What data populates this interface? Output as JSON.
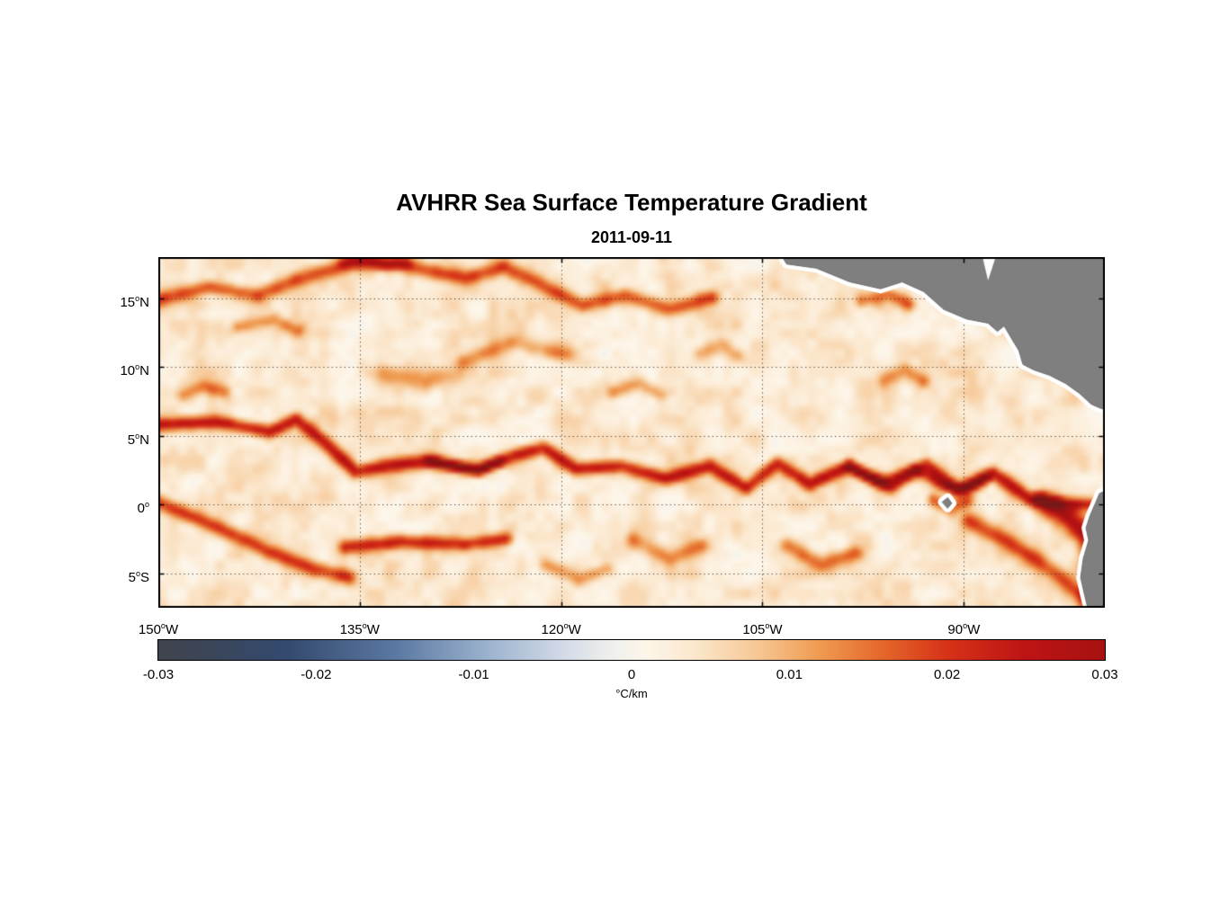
{
  "chart_data": {
    "type": "heatmap",
    "title": "AVHRR Sea Surface Temperature Gradient",
    "subtitle": "2011-09-11",
    "extent": {
      "lon_min": -150,
      "lon_max": -79.5,
      "lat_min": -7.5,
      "lat_max": 18
    },
    "x_axis": {
      "ticks": [
        {
          "value": -150,
          "num": "150",
          "hemi": "W"
        },
        {
          "value": -135,
          "num": "135",
          "hemi": "W"
        },
        {
          "value": -120,
          "num": "120",
          "hemi": "W"
        },
        {
          "value": -105,
          "num": "105",
          "hemi": "W"
        },
        {
          "value": -90,
          "num": "90",
          "hemi": "W"
        }
      ]
    },
    "y_axis": {
      "ticks": [
        {
          "value": 15,
          "num": "15",
          "hemi": "N"
        },
        {
          "value": 10,
          "num": "10",
          "hemi": "N"
        },
        {
          "value": 5,
          "num": "5",
          "hemi": "N"
        },
        {
          "value": 0,
          "num": "0",
          "hemi": ""
        },
        {
          "value": -5,
          "num": "5",
          "hemi": "S"
        }
      ]
    },
    "gridlines": {
      "lons": [
        -135,
        -120,
        -105,
        -90
      ],
      "lats": [
        15,
        10,
        5,
        0,
        -5
      ]
    },
    "colorbar": {
      "label": "°C/km",
      "range": [
        -0.03,
        0.03
      ],
      "ticks": [
        {
          "value": -0.03,
          "label": "-0.03"
        },
        {
          "value": -0.02,
          "label": "-0.02"
        },
        {
          "value": -0.01,
          "label": "-0.01"
        },
        {
          "value": 0,
          "label": "0"
        },
        {
          "value": 0.01,
          "label": "0.01"
        },
        {
          "value": 0.02,
          "label": "0.02"
        },
        {
          "value": 0.03,
          "label": "0.03"
        }
      ]
    },
    "colormap": [
      [
        -0.03,
        "#40444c"
      ],
      [
        -0.022,
        "#34496e"
      ],
      [
        -0.015,
        "#5a78a2"
      ],
      [
        -0.009,
        "#9db4cf"
      ],
      [
        -0.004,
        "#d6dde8"
      ],
      [
        -0.001,
        "#f2f1ec"
      ],
      [
        0.001,
        "#fdf6ea"
      ],
      [
        0.004,
        "#fbe7cd"
      ],
      [
        0.008,
        "#f6c795"
      ],
      [
        0.012,
        "#ef9a50"
      ],
      [
        0.016,
        "#e4662a"
      ],
      [
        0.02,
        "#d63318"
      ],
      [
        0.025,
        "#bd1414"
      ],
      [
        0.03,
        "#a81111"
      ],
      [
        0.037,
        "#7d1717"
      ]
    ],
    "background": 0.0035,
    "noise": {
      "amp": 0.0045,
      "seed": 7,
      "scale_large": 1.6,
      "scale_small": 0.7
    },
    "features": [
      {
        "name": "equatorial-front",
        "amp": 0.021,
        "width": 0.5,
        "points": [
          [
            -150,
            5.8
          ],
          [
            -145.7,
            6.0
          ],
          [
            -141.7,
            5.3
          ],
          [
            -139.7,
            6.2
          ],
          [
            -137.7,
            4.6
          ],
          [
            -135.3,
            2.4
          ],
          [
            -133,
            2.8
          ],
          [
            -129.6,
            3.2
          ],
          [
            -126.3,
            2.5
          ],
          [
            -123.3,
            3.6
          ],
          [
            -121.3,
            4.1
          ],
          [
            -118.9,
            2.6
          ],
          [
            -115.6,
            2.8
          ],
          [
            -112.2,
            1.9
          ],
          [
            -108.9,
            2.8
          ],
          [
            -106.2,
            1.2
          ],
          [
            -103.9,
            3.0
          ],
          [
            -101.5,
            1.5
          ],
          [
            -98.5,
            2.8
          ],
          [
            -95.5,
            1.3
          ],
          [
            -92.8,
            2.9
          ],
          [
            -90.5,
            1.0
          ],
          [
            -87.8,
            2.3
          ],
          [
            -85.1,
            0.4
          ],
          [
            -82.4,
            0.1
          ],
          [
            -79.5,
            -0.1
          ]
        ]
      },
      {
        "name": "front-core-west",
        "amp": 0.013,
        "width": 0.38,
        "points": [
          [
            -129.8,
            3.1
          ],
          [
            -127.6,
            2.7
          ],
          [
            -126.1,
            2.5
          ],
          [
            -124.6,
            3.1
          ]
        ]
      },
      {
        "name": "front-core-east",
        "amp": 0.013,
        "width": 0.42,
        "points": [
          [
            -98.6,
            2.7
          ],
          [
            -96.2,
            1.6
          ],
          [
            -93.6,
            2.6
          ],
          [
            -91.6,
            1.4
          ],
          [
            -89.8,
            1.2
          ],
          [
            -88.2,
            2.0
          ]
        ]
      },
      {
        "name": "north-band",
        "amp": 0.015,
        "width": 0.55,
        "points": [
          [
            -150,
            14.9
          ],
          [
            -146.2,
            15.8
          ],
          [
            -142.6,
            15.2
          ],
          [
            -139.2,
            16.5
          ],
          [
            -135.6,
            17.5
          ],
          [
            -132.6,
            17.6
          ],
          [
            -129.9,
            17.0
          ],
          [
            -127.1,
            16.5
          ],
          [
            -124.2,
            17.3
          ],
          [
            -120.9,
            15.7
          ],
          [
            -118.4,
            14.5
          ],
          [
            -115.2,
            15.2
          ],
          [
            -111.9,
            14.2
          ],
          [
            -108.8,
            15.0
          ]
        ]
      },
      {
        "name": "north-band-core",
        "amp": 0.011,
        "width": 0.4,
        "points": [
          [
            -136.2,
            17.6
          ],
          [
            -134.4,
            17.8
          ],
          [
            -132.9,
            17.4
          ],
          [
            -131.5,
            17.6
          ]
        ]
      },
      {
        "name": "southwest-diagonal",
        "amp": 0.017,
        "width": 0.55,
        "points": [
          [
            -150.2,
            0.2
          ],
          [
            -147.2,
            -1.0
          ],
          [
            -144.5,
            -2.1
          ],
          [
            -141.8,
            -3.4
          ],
          [
            -138.4,
            -4.7
          ],
          [
            -135.8,
            -5.3
          ]
        ]
      },
      {
        "name": "south-band",
        "amp": 0.019,
        "width": 0.5,
        "points": [
          [
            -136.1,
            -3.1
          ],
          [
            -131.8,
            -2.7
          ],
          [
            -127.1,
            -2.9
          ],
          [
            -124.1,
            -2.5
          ]
        ]
      },
      {
        "name": "se-coastal",
        "amp": 0.024,
        "width": 0.8,
        "points": [
          [
            -84.2,
            0.2
          ],
          [
            -82.2,
            -0.9
          ],
          [
            -80.9,
            -2.2
          ],
          [
            -80.4,
            -4.0
          ],
          [
            -80.3,
            -6.0
          ],
          [
            -80.6,
            -7.6
          ]
        ]
      },
      {
        "name": "se-band",
        "amp": 0.015,
        "width": 0.6,
        "points": [
          [
            -89.6,
            -1.2
          ],
          [
            -87.1,
            -2.5
          ],
          [
            -84.6,
            -4.0
          ],
          [
            -82.8,
            -5.3
          ],
          [
            -81.2,
            -6.6
          ]
        ]
      },
      {
        "name": "south-curl-a",
        "amp": 0.011,
        "width": 0.6,
        "points": [
          [
            -114.6,
            -2.6
          ],
          [
            -111.9,
            -3.9
          ],
          [
            -109.6,
            -3.0
          ]
        ]
      },
      {
        "name": "south-curl-b",
        "amp": 0.012,
        "width": 0.6,
        "points": [
          [
            -103.1,
            -3.0
          ],
          [
            -100.6,
            -4.4
          ],
          [
            -98.1,
            -3.5
          ]
        ]
      },
      {
        "name": "south-curl-c",
        "amp": 0.01,
        "width": 0.5,
        "points": [
          [
            -121.2,
            -4.4
          ],
          [
            -118.6,
            -5.4
          ],
          [
            -116.6,
            -4.7
          ]
        ]
      },
      {
        "name": "north-curl-a",
        "amp": 0.009,
        "width": 0.6,
        "points": [
          [
            -127.2,
            10.5
          ],
          [
            -123.6,
            11.8
          ],
          [
            -119.6,
            10.9
          ]
        ]
      },
      {
        "name": "north-curl-b",
        "amp": 0.009,
        "width": 0.5,
        "points": [
          [
            -116.1,
            8.2
          ],
          [
            -114.1,
            8.8
          ],
          [
            -112.6,
            8.0
          ]
        ]
      },
      {
        "name": "coast-patch-a",
        "amp": 0.013,
        "width": 0.5,
        "points": [
          [
            -97.6,
            14.8
          ],
          [
            -95.6,
            15.3
          ],
          [
            -94.1,
            14.6
          ]
        ]
      },
      {
        "name": "coast-patch-b",
        "amp": 0.012,
        "width": 0.45,
        "points": [
          [
            -86.6,
            16.8
          ],
          [
            -85.6,
            16.3
          ]
        ]
      },
      {
        "name": "coast-patch-c",
        "amp": 0.011,
        "width": 0.5,
        "points": [
          [
            -80.4,
            15.8
          ],
          [
            -79.8,
            15.1
          ]
        ]
      },
      {
        "name": "west-curl",
        "amp": 0.011,
        "width": 0.5,
        "points": [
          [
            -148.1,
            8.0
          ],
          [
            -146.6,
            8.6
          ],
          [
            -145.1,
            8.2
          ]
        ]
      },
      {
        "name": "northwest-curl",
        "amp": 0.01,
        "width": 0.5,
        "points": [
          [
            -144.1,
            12.9
          ],
          [
            -141.6,
            13.4
          ],
          [
            -139.6,
            12.7
          ]
        ]
      },
      {
        "name": "mid-curl",
        "amp": 0.008,
        "width": 0.7,
        "points": [
          [
            -133.1,
            9.5
          ],
          [
            -130.1,
            8.8
          ],
          [
            -127.6,
            9.6
          ]
        ]
      },
      {
        "name": "northeast-curl-a",
        "amp": 0.009,
        "width": 0.55,
        "points": [
          [
            -109.6,
            11.0
          ],
          [
            -108.1,
            11.6
          ],
          [
            -106.9,
            10.8
          ]
        ]
      },
      {
        "name": "northeast-curl-b",
        "amp": 0.01,
        "width": 0.55,
        "points": [
          [
            -95.9,
            9.0
          ],
          [
            -94.4,
            9.8
          ],
          [
            -93.1,
            9.0
          ]
        ]
      },
      {
        "name": "galapagos-wake",
        "amp": 0.014,
        "width": 0.5,
        "points": [
          [
            -92.3,
            0.3
          ],
          [
            -91.0,
            -0.3
          ],
          [
            -89.8,
            0.2
          ]
        ]
      }
    ],
    "land": {
      "color": "#7f7f7f",
      "halo": "#ffffff",
      "polygons": {
        "central-america": [
          [
            -104.0,
            18.8
          ],
          [
            -103.2,
            17.5
          ],
          [
            -101.0,
            17.2
          ],
          [
            -98.5,
            16.2
          ],
          [
            -96.2,
            15.7
          ],
          [
            -94.6,
            16.2
          ],
          [
            -93.0,
            15.5
          ],
          [
            -91.5,
            14.2
          ],
          [
            -89.8,
            13.5
          ],
          [
            -88.2,
            13.2
          ],
          [
            -87.5,
            12.6
          ],
          [
            -87.0,
            13.0
          ],
          [
            -86.4,
            12.0
          ],
          [
            -85.9,
            11.2
          ],
          [
            -85.6,
            10.2
          ],
          [
            -84.8,
            9.8
          ],
          [
            -83.6,
            9.4
          ],
          [
            -82.4,
            8.8
          ],
          [
            -81.4,
            8.1
          ],
          [
            -80.5,
            7.3
          ],
          [
            -79.8,
            7.0
          ],
          [
            -79.0,
            6.8
          ],
          [
            -79.0,
            19.2
          ]
        ],
        "south-america": [
          [
            -79.0,
            1.2
          ],
          [
            -79.9,
            0.8
          ],
          [
            -80.2,
            0.1
          ],
          [
            -80.6,
            -0.8
          ],
          [
            -80.9,
            -1.7
          ],
          [
            -80.7,
            -2.6
          ],
          [
            -81.1,
            -3.9
          ],
          [
            -81.3,
            -5.3
          ],
          [
            -81.0,
            -6.6
          ],
          [
            -80.6,
            -8.2
          ],
          [
            -79.0,
            -8.2
          ]
        ],
        "galapagos": [
          [
            -91.6,
            0.2
          ],
          [
            -91.2,
            0.5
          ],
          [
            -90.9,
            0.1
          ],
          [
            -91.2,
            -0.25
          ]
        ]
      },
      "inlets": {
        "gulf-of-honduras": [
          [
            -88.7,
            18.4
          ],
          [
            -88.2,
            16.3
          ],
          [
            -87.5,
            18.4
          ]
        ]
      }
    }
  }
}
